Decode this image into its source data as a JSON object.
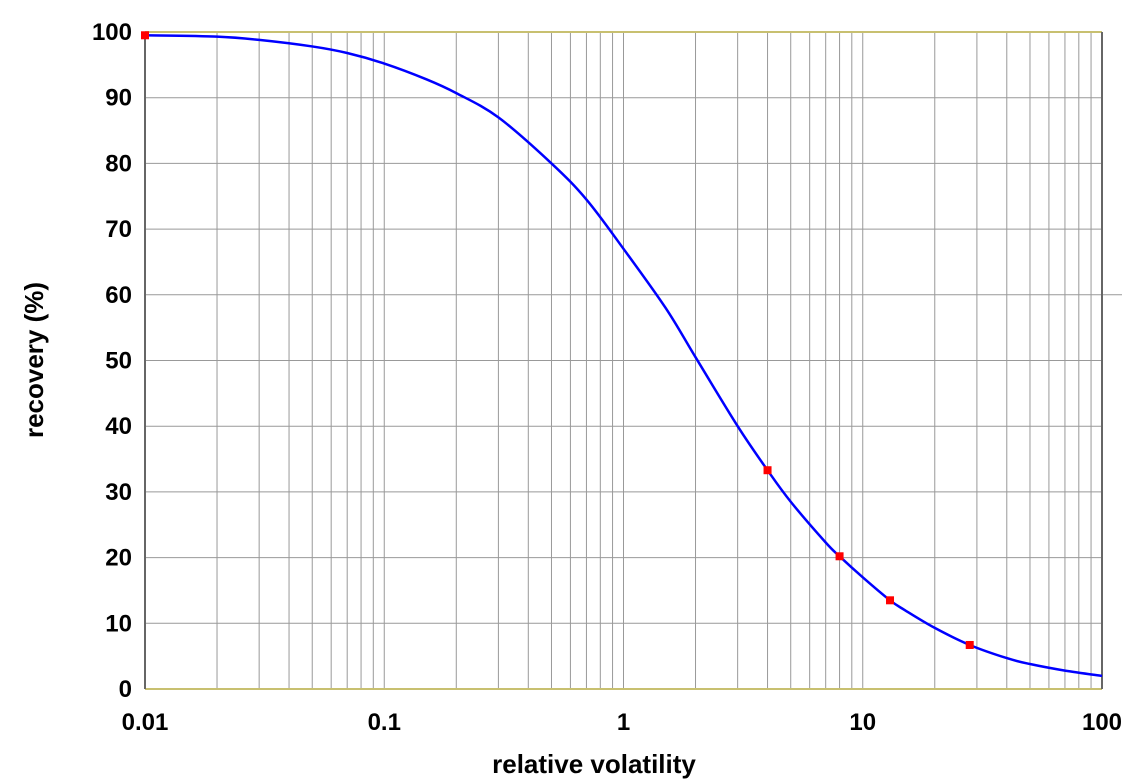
{
  "chart_data": {
    "type": "line",
    "title": "",
    "xlabel": "relative volatility",
    "ylabel": "recovery (%)",
    "x_scale": "log",
    "xlim": [
      0.01,
      100
    ],
    "ylim": [
      0,
      100
    ],
    "x_ticks": [
      "0.01",
      "0.1",
      "1",
      "10",
      "100"
    ],
    "y_ticks": [
      "0",
      "10",
      "20",
      "30",
      "40",
      "50",
      "60",
      "70",
      "80",
      "90",
      "100"
    ],
    "grid": true,
    "legend": "none",
    "series": [
      {
        "kind": "line",
        "color": "#0000ff",
        "x": [
          0.01,
          0.02,
          0.03,
          0.05,
          0.07,
          0.1,
          0.15,
          0.2,
          0.3,
          0.5,
          0.7,
          1,
          1.5,
          2,
          3,
          4,
          5,
          7,
          8,
          10,
          13,
          15,
          20,
          28,
          40,
          50,
          70,
          100
        ],
        "y": [
          99.5,
          99.3,
          98.8,
          97.8,
          96.8,
          95.2,
          92.8,
          90.7,
          87,
          80,
          74.5,
          67,
          58,
          50.5,
          40,
          33.3,
          28.5,
          22.3,
          20.2,
          17,
          13.5,
          12,
          9.3,
          6.7,
          4.7,
          3.8,
          2.8,
          2
        ]
      },
      {
        "kind": "markers",
        "color": "#ff0000",
        "x": [
          0.01,
          4,
          8,
          13,
          28
        ],
        "y": [
          99.5,
          33.3,
          20.2,
          13.5,
          6.7
        ]
      }
    ],
    "colors": {
      "grid_vertical": "#999999",
      "grid_horizontal": "#999999",
      "frame": "#c8c070"
    }
  }
}
